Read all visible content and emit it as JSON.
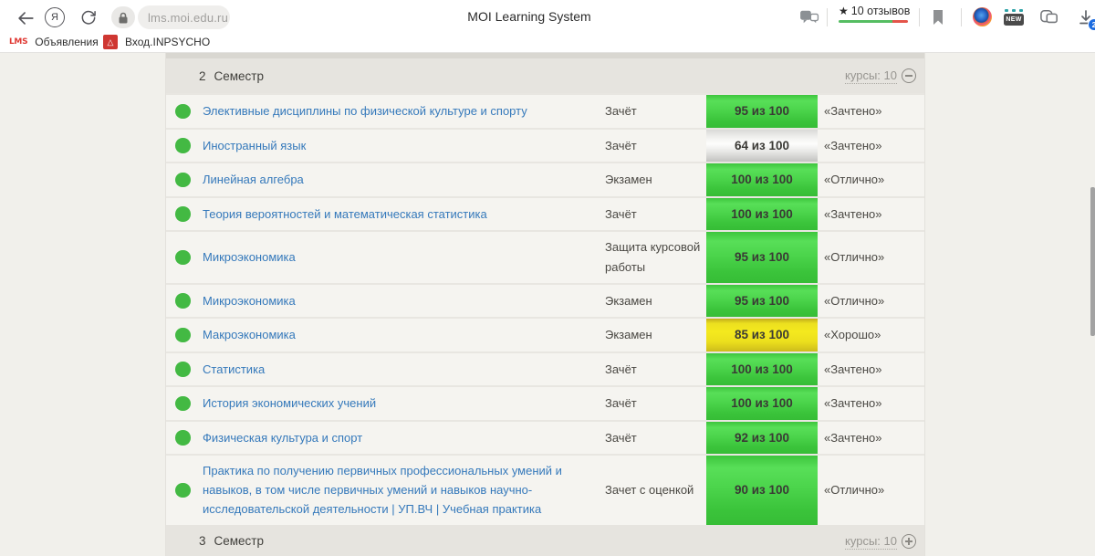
{
  "browser": {
    "url": "lms.moi.edu.ru",
    "page_title": "MOI Learning System",
    "reviews_star": "★",
    "reviews_label": "10 отзывов",
    "download_badge": "2",
    "new_badge": "NEW",
    "bookmarks": [
      {
        "icon_text": "LMS",
        "label": "Объявления"
      },
      {
        "icon_text": "△",
        "label": "Вход.INPSYCHO"
      }
    ]
  },
  "table": {
    "sections": [
      {
        "number": "2",
        "title": "Семестр",
        "courses_label": "курсы: 10",
        "toggle": "minus"
      },
      {
        "number": "3",
        "title": "Семестр",
        "courses_label": "курсы: 10",
        "toggle": "plus"
      }
    ],
    "rows": [
      {
        "name": "Элективные дисциплины по физической культуре и спорту",
        "exam": "Зачёт",
        "score": "95 из 100",
        "tone": "green",
        "grade": "«Зачтено»"
      },
      {
        "name": "Иностранный язык",
        "exam": "Зачёт",
        "score": "64 из 100",
        "tone": "gray",
        "grade": "«Зачтено»"
      },
      {
        "name": "Линейная алгебра",
        "exam": "Экзамен",
        "score": "100 из 100",
        "tone": "green",
        "grade": "«Отлично»"
      },
      {
        "name": "Теория вероятностей и математическая статистика",
        "exam": "Зачёт",
        "score": "100 из 100",
        "tone": "green",
        "grade": "«Зачтено»"
      },
      {
        "name": "Микроэкономика",
        "exam": "Защита курсовой работы",
        "score": "95 из 100",
        "tone": "green",
        "grade": "«Отлично»"
      },
      {
        "name": "Микроэкономика",
        "exam": "Экзамен",
        "score": "95 из 100",
        "tone": "green",
        "grade": "«Отлично»"
      },
      {
        "name": "Макроэкономика",
        "exam": "Экзамен",
        "score": "85 из 100",
        "tone": "yellow",
        "grade": "«Хорошо»"
      },
      {
        "name": "Статистика",
        "exam": "Зачёт",
        "score": "100 из 100",
        "tone": "green",
        "grade": "«Зачтено»"
      },
      {
        "name": "История экономических учений",
        "exam": "Зачёт",
        "score": "100 из 100",
        "tone": "green",
        "grade": "«Зачтено»"
      },
      {
        "name": "Физическая культура и спорт",
        "exam": "Зачёт",
        "score": "92 из 100",
        "tone": "green",
        "grade": "«Зачтено»"
      },
      {
        "name": "Практика по получению первичных профессиональных умений и навыков, в том числе первичных умений и навыков научно-исследовательской деятельности | УП.ВЧ | Учебная практика",
        "exam": "Зачет с оценкой",
        "score": "90 из 100",
        "tone": "green",
        "grade": "«Отлично»"
      }
    ]
  },
  "colors": {
    "accent_green": "#43b943",
    "score_green": "#44ca44",
    "score_gray": "#e0e0de",
    "score_yellow": "#f4e91e",
    "link_blue": "#3579bb",
    "reviews_green": "#55bd62",
    "reviews_red": "#e4544a"
  }
}
